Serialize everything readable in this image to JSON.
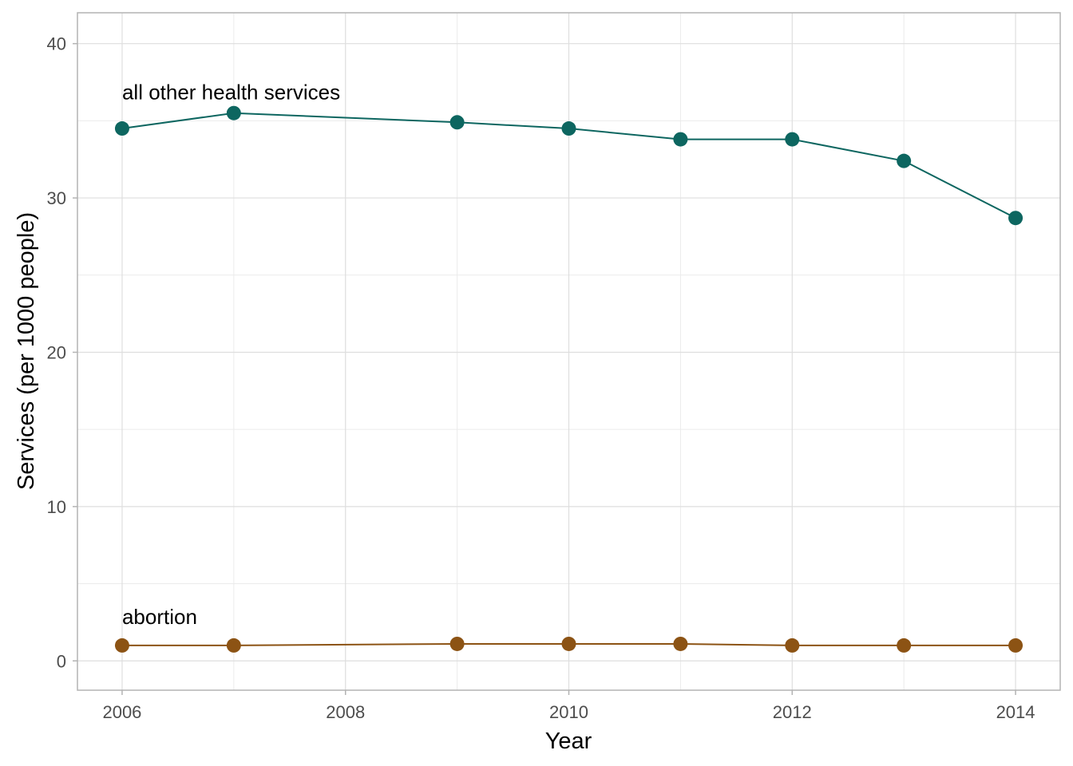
{
  "chart_data": {
    "type": "line",
    "xlabel": "Year",
    "ylabel": "Services (per 1000 people)",
    "xlim": [
      2005.6,
      2014.4
    ],
    "ylim": [
      -1.9,
      42.0
    ],
    "x_ticks": [
      2006,
      2008,
      2010,
      2012,
      2014
    ],
    "y_ticks": [
      0,
      10,
      20,
      30,
      40
    ],
    "x_minor_ticks": [
      2007,
      2009,
      2011,
      2013
    ],
    "y_minor_ticks": [
      5,
      15,
      25,
      35
    ],
    "grid": true,
    "legend": "none",
    "series": [
      {
        "name": "all other health services",
        "color": "#0d6660",
        "points": [
          {
            "x": 2006,
            "y": 34.5
          },
          {
            "x": 2007,
            "y": 35.5
          },
          {
            "x": 2009,
            "y": 34.9
          },
          {
            "x": 2010,
            "y": 34.5
          },
          {
            "x": 2011,
            "y": 33.8
          },
          {
            "x": 2012,
            "y": 33.8
          },
          {
            "x": 2013,
            "y": 32.4
          },
          {
            "x": 2014,
            "y": 28.7
          }
        ],
        "label_anchor": {
          "x": 2006,
          "y": 36.4
        }
      },
      {
        "name": "abortion",
        "color": "#8c5314",
        "points": [
          {
            "x": 2006,
            "y": 1.0
          },
          {
            "x": 2007,
            "y": 1.0
          },
          {
            "x": 2009,
            "y": 1.1
          },
          {
            "x": 2010,
            "y": 1.1
          },
          {
            "x": 2011,
            "y": 1.1
          },
          {
            "x": 2012,
            "y": 1.0
          },
          {
            "x": 2013,
            "y": 1.0
          },
          {
            "x": 2014,
            "y": 1.0
          }
        ],
        "label_anchor": {
          "x": 2006,
          "y": 2.4
        }
      }
    ]
  }
}
